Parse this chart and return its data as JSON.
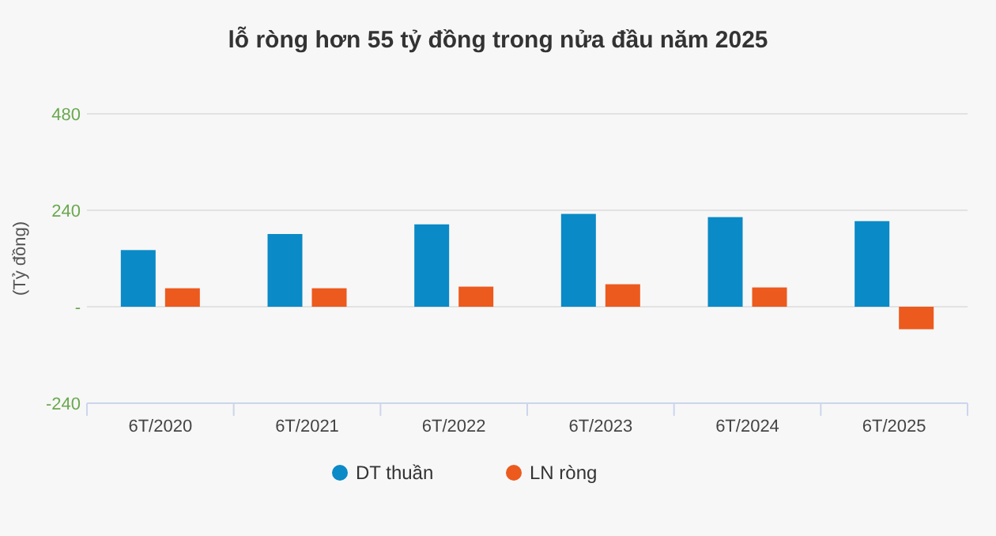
{
  "chart_data": {
    "type": "bar",
    "title": "lỗ ròng hơn 55 tỷ đồng trong nửa đầu năm 2025",
    "ylabel": "(Tỷ đồng)",
    "categories": [
      "6T/2020",
      "6T/2021",
      "6T/2022",
      "6T/2023",
      "6T/2024",
      "6T/2025"
    ],
    "series": [
      {
        "name": "DT thuần",
        "color": "#0a8ac6",
        "values": [
          141,
          181,
          205,
          231,
          223,
          213
        ]
      },
      {
        "name": "LN ròng",
        "color": "#ec5a1e",
        "values": [
          46,
          46,
          50,
          56,
          48,
          -56
        ]
      }
    ],
    "ylim": [
      -240,
      480
    ],
    "yticks": [
      -240,
      {
        "value": 0,
        "label": "-"
      },
      240,
      480
    ],
    "grid": "y",
    "legend": "bottom"
  }
}
